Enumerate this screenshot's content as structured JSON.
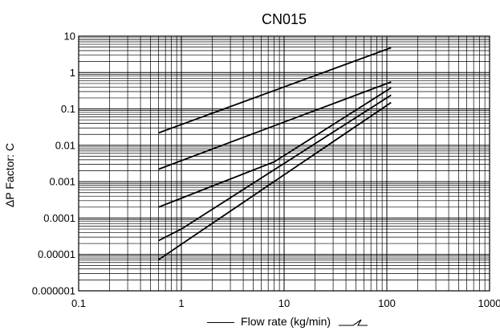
{
  "chart_data": {
    "type": "line",
    "title": "CN015",
    "xlabel": "Flow rate (kg/min)",
    "ylabel": "ΔP  Factor: C",
    "xscale": "log",
    "yscale": "log",
    "xlim": [
      0.1,
      1000
    ],
    "ylim": [
      1e-06,
      10
    ],
    "grid": true,
    "x_ticks": [
      "0.1",
      "1",
      "10",
      "100",
      "1000"
    ],
    "y_ticks": [
      "10",
      "1",
      "0.1",
      "0.01",
      "0.001",
      "0.0001",
      "0.00001",
      "0.000001"
    ],
    "series": [
      {
        "x": [
          0.6,
          110
        ],
        "y": [
          0.022,
          4.8
        ]
      },
      {
        "x": [
          0.6,
          110
        ],
        "y": [
          0.0022,
          0.55
        ]
      },
      {
        "x": [
          0.6,
          8,
          110
        ],
        "y": [
          0.0002,
          0.0035,
          0.38
        ]
      },
      {
        "x": [
          0.6,
          1,
          110
        ],
        "y": [
          2.4e-05,
          5e-05,
          0.24
        ]
      },
      {
        "x": [
          0.6,
          110
        ],
        "y": [
          7.2e-06,
          0.15
        ]
      }
    ]
  }
}
